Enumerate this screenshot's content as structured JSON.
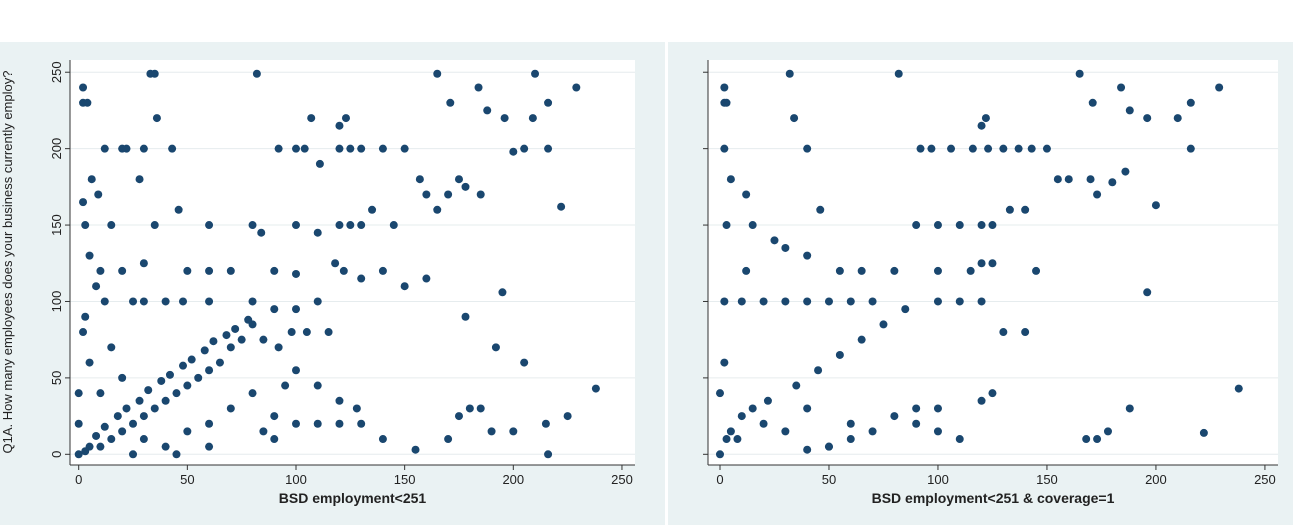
{
  "chart_data": [
    {
      "type": "scatter",
      "xlabel": "BSD employment<251",
      "ylabel": "Q1A. How many employees does your business currently employ?",
      "color": "#1a476f",
      "grid": true,
      "xlim": [
        -4,
        256
      ],
      "ylim": [
        -7,
        258
      ],
      "xticks": [
        0,
        50,
        100,
        150,
        200,
        250
      ],
      "yticks": [
        0,
        50,
        100,
        150,
        200,
        250
      ],
      "x": [
        2,
        2,
        4,
        33,
        35,
        36,
        82,
        165,
        210,
        229,
        184,
        216,
        171,
        188,
        196,
        209,
        107,
        123,
        120,
        104,
        100,
        12,
        20,
        22,
        30,
        43,
        92,
        111,
        120,
        125,
        130,
        140,
        150,
        157,
        175,
        185,
        200,
        205,
        216,
        222,
        28,
        6,
        46,
        9,
        2,
        3,
        15,
        35,
        60,
        80,
        84,
        100,
        110,
        120,
        125,
        130,
        135,
        145,
        160,
        165,
        170,
        178,
        5,
        10,
        20,
        30,
        50,
        60,
        70,
        90,
        100,
        118,
        122,
        130,
        140,
        150,
        160,
        25,
        30,
        40,
        48,
        60,
        80,
        90,
        100,
        110,
        195,
        178,
        192,
        205,
        238,
        185,
        175,
        180,
        140,
        155,
        170,
        200,
        215,
        225,
        216,
        190,
        130,
        128,
        120,
        110,
        105,
        115,
        98,
        92,
        85,
        80,
        75,
        70,
        65,
        60,
        55,
        50,
        45,
        40,
        35,
        30,
        25,
        20,
        15,
        10,
        5,
        3,
        8,
        12,
        18,
        22,
        28,
        32,
        38,
        42,
        48,
        52,
        58,
        62,
        68,
        72,
        78,
        10,
        5,
        15,
        3,
        20,
        30,
        40,
        50,
        60,
        70,
        80,
        90,
        100,
        60,
        45,
        25,
        0,
        0,
        0,
        2,
        12,
        8,
        90,
        85,
        95,
        100,
        110,
        120
      ],
      "y": [
        240,
        230,
        230,
        249,
        249,
        220,
        249,
        249,
        249,
        240,
        240,
        230,
        230,
        225,
        220,
        220,
        220,
        220,
        215,
        200,
        200,
        200,
        200,
        200,
        200,
        200,
        200,
        190,
        200,
        200,
        200,
        200,
        200,
        180,
        180,
        170,
        198,
        200,
        200,
        162,
        180,
        180,
        160,
        170,
        165,
        150,
        150,
        150,
        150,
        150,
        145,
        150,
        145,
        150,
        150,
        150,
        160,
        150,
        170,
        160,
        170,
        175,
        130,
        120,
        120,
        125,
        120,
        120,
        120,
        120,
        118,
        125,
        120,
        115,
        120,
        110,
        115,
        100,
        100,
        100,
        100,
        100,
        100,
        95,
        95,
        100,
        106,
        90,
        70,
        60,
        43,
        30,
        25,
        30,
        10,
        3,
        10,
        15,
        20,
        25,
        0,
        15,
        20,
        30,
        35,
        45,
        80,
        80,
        80,
        70,
        75,
        85,
        75,
        70,
        60,
        55,
        50,
        45,
        40,
        35,
        30,
        25,
        20,
        15,
        10,
        5,
        5,
        2,
        12,
        18,
        25,
        30,
        35,
        42,
        48,
        52,
        58,
        62,
        68,
        74,
        78,
        82,
        88,
        40,
        60,
        70,
        90,
        50,
        10,
        5,
        15,
        20,
        30,
        40,
        10,
        20,
        5,
        0,
        0,
        0,
        20,
        40,
        80,
        100,
        110,
        25,
        15,
        45,
        55,
        20,
        20
      ]
    },
    {
      "type": "scatter",
      "xlabel": "BSD employment<251 & coverage=1",
      "color": "#1a476f",
      "grid": true,
      "xlim": [
        -5.5,
        256
      ],
      "ylim": [
        -7,
        258
      ],
      "xticks": [
        0,
        50,
        100,
        150,
        200,
        250
      ],
      "yticks": [
        0,
        50,
        100,
        150,
        200,
        250
      ],
      "x": [
        2,
        2,
        3,
        32,
        34,
        82,
        165,
        229,
        184,
        216,
        171,
        188,
        196,
        210,
        122,
        120,
        106,
        2,
        40,
        92,
        97,
        116,
        123,
        130,
        137,
        143,
        150,
        155,
        160,
        173,
        180,
        186,
        200,
        216,
        5,
        12,
        46,
        90,
        100,
        110,
        120,
        125,
        133,
        140,
        170,
        3,
        15,
        25,
        30,
        40,
        55,
        65,
        80,
        100,
        115,
        120,
        125,
        145,
        2,
        10,
        20,
        30,
        40,
        50,
        60,
        70,
        85,
        100,
        110,
        120,
        196,
        168,
        188,
        238,
        222,
        178,
        173,
        130,
        140,
        125,
        120,
        100,
        90,
        80,
        70,
        60,
        50,
        40,
        30,
        20,
        10,
        5,
        3,
        8,
        15,
        22,
        35,
        45,
        55,
        65,
        75,
        0,
        0,
        2,
        12,
        60,
        50,
        40,
        90,
        100,
        110
      ],
      "y": [
        240,
        230,
        230,
        249,
        220,
        249,
        249,
        240,
        240,
        230,
        230,
        225,
        220,
        220,
        220,
        215,
        200,
        200,
        200,
        200,
        200,
        200,
        200,
        200,
        200,
        200,
        200,
        180,
        180,
        170,
        178,
        185,
        163,
        200,
        180,
        170,
        160,
        150,
        150,
        150,
        150,
        150,
        160,
        160,
        180,
        150,
        150,
        140,
        135,
        130,
        120,
        120,
        120,
        120,
        120,
        125,
        125,
        120,
        100,
        100,
        100,
        100,
        100,
        100,
        100,
        100,
        95,
        100,
        100,
        100,
        106,
        10,
        30,
        43,
        14,
        15,
        10,
        80,
        80,
        40,
        35,
        30,
        30,
        25,
        15,
        10,
        5,
        3,
        15,
        20,
        25,
        15,
        10,
        10,
        30,
        35,
        45,
        55,
        65,
        75,
        85,
        0,
        40,
        60,
        120,
        20,
        5,
        30,
        20,
        15,
        10
      ]
    }
  ]
}
